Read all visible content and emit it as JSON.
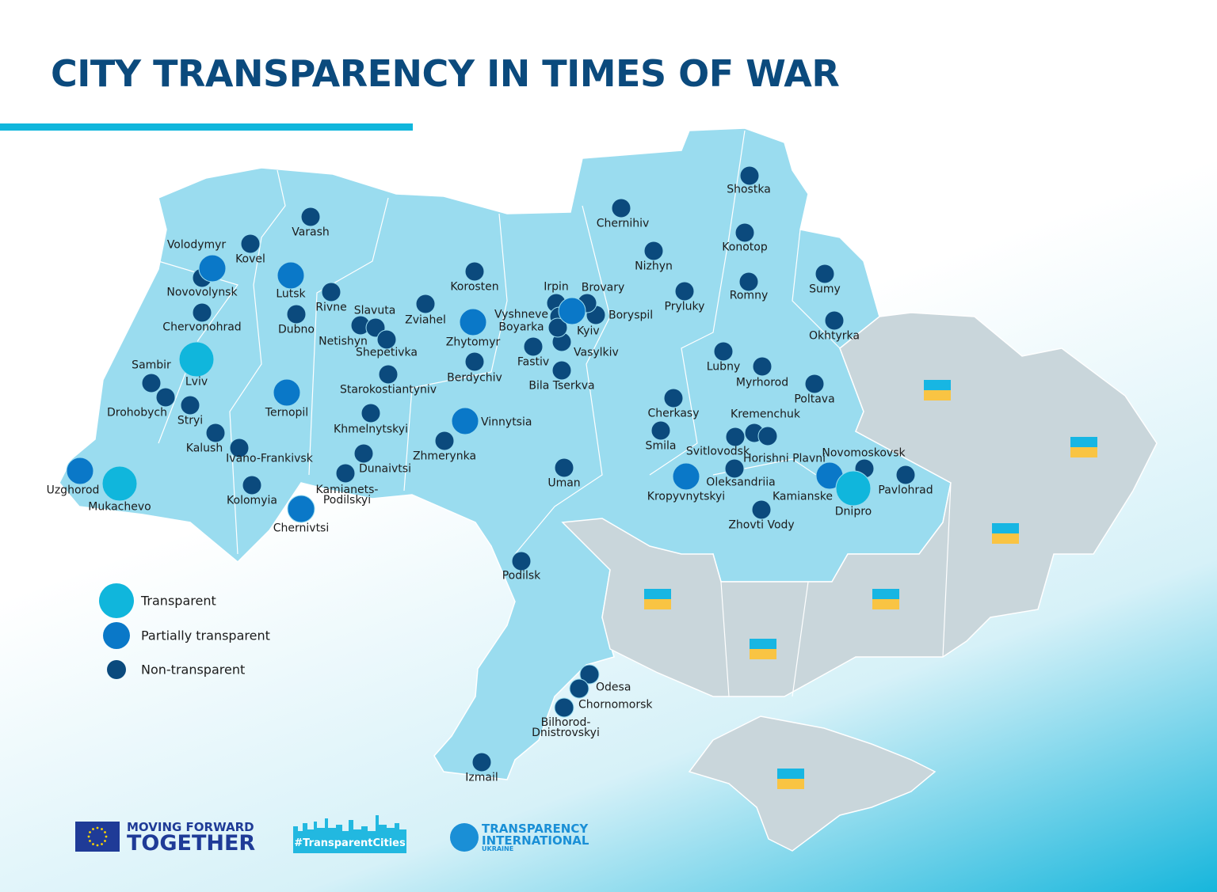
{
  "title": "CITY TRANSPARENCY IN TIMES OF WAR",
  "colors": {
    "transparent": "#10b6dc",
    "partially_transparent": "#0a78c8",
    "non_transparent": "#0b4a7d",
    "controlled_territory": "#9adcef",
    "occupied_territory": "#c9d6db",
    "title": "#0b4a7d"
  },
  "legend": [
    {
      "label": "Transparent",
      "status": "transparent"
    },
    {
      "label": "Partially transparent",
      "status": "partial"
    },
    {
      "label": "Non-transparent",
      "status": "non"
    }
  ],
  "cities": [
    {
      "name": "Lviv",
      "status": "transparent"
    },
    {
      "name": "Mukachevo",
      "status": "transparent"
    },
    {
      "name": "Dnipro",
      "status": "transparent"
    },
    {
      "name": "Volodymyr",
      "status": "partial"
    },
    {
      "name": "Lutsk",
      "status": "partial"
    },
    {
      "name": "Ternopil",
      "status": "partial"
    },
    {
      "name": "Zhytomyr",
      "status": "partial"
    },
    {
      "name": "Vinnytsia",
      "status": "partial"
    },
    {
      "name": "Kyiv",
      "status": "partial"
    },
    {
      "name": "Uzghorod",
      "status": "partial"
    },
    {
      "name": "Chernivtsi",
      "status": "partial"
    },
    {
      "name": "Kropyvnytskyi",
      "status": "partial"
    },
    {
      "name": "Kamianske",
      "status": "partial"
    },
    {
      "name": "Shostka",
      "status": "non"
    },
    {
      "name": "Chernihiv",
      "status": "non"
    },
    {
      "name": "Konotop",
      "status": "non"
    },
    {
      "name": "Nizhyn",
      "status": "non"
    },
    {
      "name": "Romny",
      "status": "non"
    },
    {
      "name": "Sumy",
      "status": "non"
    },
    {
      "name": "Pryluky",
      "status": "non"
    },
    {
      "name": "Okhtyrka",
      "status": "non"
    },
    {
      "name": "Lubny",
      "status": "non"
    },
    {
      "name": "Myrhorod",
      "status": "non"
    },
    {
      "name": "Poltava",
      "status": "non"
    },
    {
      "name": "Kremenchuk",
      "status": "non"
    },
    {
      "name": "Svitlovodsk",
      "status": "non"
    },
    {
      "name": "Horishni Plavni",
      "status": "non"
    },
    {
      "name": "Cherkasy",
      "status": "non"
    },
    {
      "name": "Smila",
      "status": "non"
    },
    {
      "name": "Oleksandriia",
      "status": "non"
    },
    {
      "name": "Zhovti Vody",
      "status": "non"
    },
    {
      "name": "Novomoskovsk",
      "status": "non"
    },
    {
      "name": "Pavlohrad",
      "status": "non"
    },
    {
      "name": "Uman",
      "status": "non"
    },
    {
      "name": "Bila Tserkva",
      "status": "non"
    },
    {
      "name": "Fastiv",
      "status": "non"
    },
    {
      "name": "Vasylkiv",
      "status": "non"
    },
    {
      "name": "Boryspil",
      "status": "non"
    },
    {
      "name": "Brovary",
      "status": "non"
    },
    {
      "name": "Irpin",
      "status": "non"
    },
    {
      "name": "Vyshneve",
      "status": "non"
    },
    {
      "name": "Boyarka",
      "status": "non"
    },
    {
      "name": "Berdychiv",
      "status": "non"
    },
    {
      "name": "Korosten",
      "status": "non"
    },
    {
      "name": "Zviahel",
      "status": "non"
    },
    {
      "name": "Slavuta",
      "status": "non"
    },
    {
      "name": "Netishyn",
      "status": "non"
    },
    {
      "name": "Shepetivka",
      "status": "non"
    },
    {
      "name": "Starokostiantyniv",
      "status": "non"
    },
    {
      "name": "Khmelnytskyi",
      "status": "non"
    },
    {
      "name": "Zhmerynka",
      "status": "non"
    },
    {
      "name": "Dunaivtsi",
      "status": "non"
    },
    {
      "name": "Kamianets-Podilskyi",
      "status": "non"
    },
    {
      "name": "Rivne",
      "status": "non"
    },
    {
      "name": "Dubno",
      "status": "non"
    },
    {
      "name": "Varash",
      "status": "non"
    },
    {
      "name": "Kovel",
      "status": "non"
    },
    {
      "name": "Novovolynsk",
      "status": "non"
    },
    {
      "name": "Chervonohrad",
      "status": "non"
    },
    {
      "name": "Sambir",
      "status": "non"
    },
    {
      "name": "Drohobych",
      "status": "non"
    },
    {
      "name": "Stryi",
      "status": "non"
    },
    {
      "name": "Kalush",
      "status": "non"
    },
    {
      "name": "Ivano-Frankivsk",
      "status": "non"
    },
    {
      "name": "Kolomyia",
      "status": "non"
    },
    {
      "name": "Podilsk",
      "status": "non"
    },
    {
      "name": "Odesa",
      "status": "non"
    },
    {
      "name": "Chornomorsk",
      "status": "non"
    },
    {
      "name": "Bilhorod-Dnistrovskyi",
      "status": "non"
    },
    {
      "name": "Izmail",
      "status": "non"
    }
  ],
  "logos": {
    "eu": {
      "line1": "MOVING FORWARD",
      "line2": "TOGETHER"
    },
    "transparent_cities": {
      "text": "#TransparentCities"
    },
    "ti": {
      "line1": "TRANSPARENCY",
      "line2": "INTERNATIONAL",
      "line3": "UKRAINE"
    }
  }
}
